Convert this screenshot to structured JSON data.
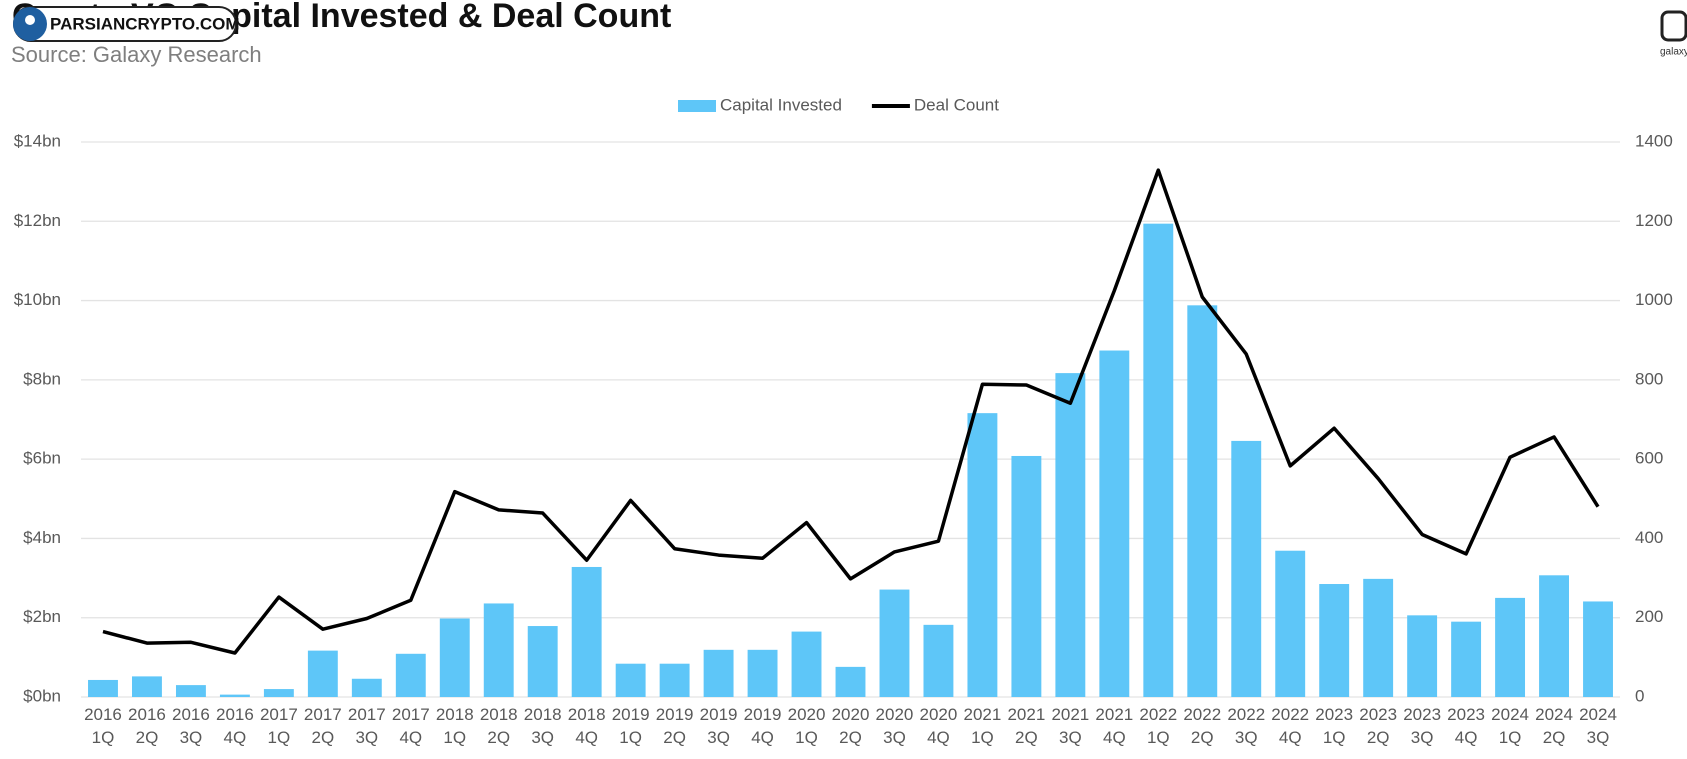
{
  "watermark": "PARSIANCRYPTO.COM",
  "logo": "galaxy",
  "chart_data": {
    "type": "bar-line",
    "title": "Crypto VC Capital Invested & Deal Count",
    "subtitle": "Source: Galaxy Research",
    "categories": [
      [
        "2016",
        "1Q"
      ],
      [
        "2016",
        "2Q"
      ],
      [
        "2016",
        "3Q"
      ],
      [
        "2016",
        "4Q"
      ],
      [
        "2017",
        "1Q"
      ],
      [
        "2017",
        "2Q"
      ],
      [
        "2017",
        "3Q"
      ],
      [
        "2017",
        "4Q"
      ],
      [
        "2018",
        "1Q"
      ],
      [
        "2018",
        "2Q"
      ],
      [
        "2018",
        "3Q"
      ],
      [
        "2018",
        "4Q"
      ],
      [
        "2019",
        "1Q"
      ],
      [
        "2019",
        "2Q"
      ],
      [
        "2019",
        "3Q"
      ],
      [
        "2019",
        "4Q"
      ],
      [
        "2020",
        "1Q"
      ],
      [
        "2020",
        "2Q"
      ],
      [
        "2020",
        "3Q"
      ],
      [
        "2020",
        "4Q"
      ],
      [
        "2021",
        "1Q"
      ],
      [
        "2021",
        "2Q"
      ],
      [
        "2021",
        "3Q"
      ],
      [
        "2021",
        "4Q"
      ],
      [
        "2022",
        "1Q"
      ],
      [
        "2022",
        "2Q"
      ],
      [
        "2022",
        "3Q"
      ],
      [
        "2022",
        "4Q"
      ],
      [
        "2023",
        "1Q"
      ],
      [
        "2023",
        "2Q"
      ],
      [
        "2023",
        "3Q"
      ],
      [
        "2023",
        "4Q"
      ],
      [
        "2024",
        "1Q"
      ],
      [
        "2024",
        "2Q"
      ],
      [
        "2024",
        "3Q"
      ]
    ],
    "series": [
      {
        "name": "Capital Invested",
        "type": "bar",
        "color": "#5ec6f8",
        "values": [
          0.43,
          0.52,
          0.3,
          0.06,
          0.2,
          1.17,
          0.46,
          1.09,
          1.98,
          2.36,
          1.79,
          3.28,
          0.84,
          0.84,
          1.19,
          1.19,
          1.65,
          0.76,
          2.71,
          1.82,
          7.16,
          6.08,
          8.17,
          8.74,
          11.94,
          9.88,
          6.46,
          3.69,
          2.85,
          2.98,
          2.06,
          1.9,
          2.5,
          3.07,
          2.41
        ]
      },
      {
        "name": "Deal Count",
        "type": "line",
        "color": "#000000",
        "axis": "y2",
        "values": [
          165,
          136,
          138,
          111,
          252,
          171,
          198,
          244,
          518,
          472,
          464,
          345,
          496,
          374,
          358,
          350,
          440,
          298,
          366,
          393,
          789,
          787,
          741,
          1025,
          1329,
          1009,
          865,
          583,
          678,
          551,
          410,
          361,
          605,
          656,
          480
        ]
      }
    ],
    "ylim": [
      0,
      14
    ],
    "yticks": [
      {
        "value": 0,
        "label": "$0bn"
      },
      {
        "value": 2,
        "label": "$2bn"
      },
      {
        "value": 4,
        "label": "$4bn"
      },
      {
        "value": 6,
        "label": "$6bn"
      },
      {
        "value": 8,
        "label": "$8bn"
      },
      {
        "value": 10,
        "label": "$10bn"
      },
      {
        "value": 12,
        "label": "$12bn"
      },
      {
        "value": 14,
        "label": "$14bn"
      }
    ],
    "y2lim": [
      0,
      1400
    ],
    "y2ticks": [
      0,
      200,
      400,
      600,
      800,
      1000,
      1200,
      1400
    ],
    "grid": true,
    "legend": "top"
  }
}
